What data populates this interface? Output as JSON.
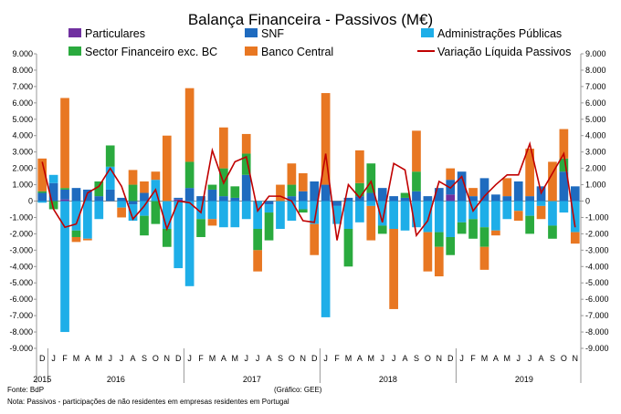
{
  "chart_data": {
    "type": "bar",
    "title": "Balança Financeira - Passivos (M€)",
    "ylim": [
      -9000,
      9000
    ],
    "y_ticks": [
      "9.000",
      "8.000",
      "7.000",
      "6.000",
      "5.000",
      "4.000",
      "3.000",
      "2.000",
      "1.000",
      "0",
      "-1.000",
      "-2.000",
      "-3.000",
      "-4.000",
      "-5.000",
      "-6.000",
      "-7.000",
      "-8.000",
      "-9.000"
    ],
    "month_letters": [
      "D",
      "J",
      "F",
      "M",
      "A",
      "M",
      "J",
      "J",
      "A",
      "S",
      "O",
      "N",
      "D",
      "J",
      "F",
      "M",
      "A",
      "M",
      "J",
      "J",
      "A",
      "S",
      "O",
      "N",
      "D",
      "J",
      "F",
      "M",
      "A",
      "M",
      "J",
      "J",
      "A",
      "S",
      "O",
      "N",
      "D",
      "J",
      "F",
      "M",
      "A",
      "M",
      "J",
      "J",
      "A",
      "S",
      "O",
      "N"
    ],
    "years": [
      {
        "label": "2015",
        "month_index": 0
      },
      {
        "label": "2016",
        "month_index": 6.5
      },
      {
        "label": "2017",
        "month_index": 18.5
      },
      {
        "label": "2018",
        "month_index": 30.5
      },
      {
        "label": "2019",
        "month_index": 42.5
      }
    ],
    "legend": {
      "particulares": "Particulares",
      "snf": "SNF",
      "adm_publicas": "Administrações Públicas",
      "sector_fin": "Sector Financeiro exc. BC",
      "banco_central": "Banco Central",
      "variacao": "Variação Líquida Passivos"
    },
    "series": [
      {
        "key": "particulares",
        "name": "Particulares",
        "color": "#7030a0",
        "values": [
          0,
          0,
          100,
          0,
          0,
          0,
          0,
          0,
          0,
          0,
          0,
          0,
          100,
          0,
          0,
          0,
          0,
          0,
          0,
          0,
          0,
          0,
          0,
          0,
          0,
          0,
          0,
          0,
          0,
          0,
          0,
          0,
          0,
          0,
          0,
          0,
          400,
          0,
          0,
          0,
          0,
          0,
          0,
          0,
          0,
          0,
          0,
          0
        ]
      },
      {
        "key": "snf",
        "name": "SNF",
        "color": "#1f6bbf",
        "values": [
          500,
          1100,
          600,
          800,
          700,
          300,
          700,
          200,
          -200,
          500,
          0,
          0,
          100,
          800,
          300,
          700,
          300,
          200,
          1600,
          0,
          -200,
          0,
          300,
          600,
          1200,
          1000,
          -300,
          200,
          300,
          500,
          800,
          300,
          200,
          600,
          300,
          800,
          900,
          1800,
          300,
          1400,
          400,
          300,
          1200,
          300,
          900,
          0,
          1800,
          900
        ]
      },
      {
        "key": "adm_publicas",
        "name": "Administrações Públicas",
        "color": "#1eaee8",
        "values": [
          -100,
          500,
          -8000,
          -1800,
          -2300,
          -1100,
          1400,
          -400,
          -1000,
          -900,
          1300,
          -1700,
          -4100,
          -5200,
          -1100,
          -1100,
          -1600,
          -1600,
          -1100,
          -1700,
          -500,
          -1700,
          -1200,
          -500,
          -1400,
          -7100,
          -1100,
          -1700,
          -1300,
          -300,
          -1500,
          -1700,
          -1800,
          -1600,
          -1900,
          -1900,
          -2200,
          -1300,
          -1100,
          -1600,
          -1800,
          -1100,
          -600,
          -900,
          -300,
          -1500,
          -700,
          -1900
        ]
      },
      {
        "key": "sector_fin",
        "name": "Sector Financeiro exc. BC",
        "color": "#2aaa3e",
        "values": [
          100,
          -500,
          100,
          -400,
          0,
          900,
          1300,
          0,
          1000,
          -1200,
          -1400,
          -1100,
          0,
          1600,
          -1100,
          300,
          1700,
          700,
          1300,
          -1300,
          -1700,
          0,
          700,
          -200,
          0,
          0,
          0,
          -2300,
          800,
          1800,
          -500,
          0,
          300,
          1200,
          0,
          -900,
          -1100,
          -700,
          -1200,
          -1200,
          0,
          0,
          0,
          -1100,
          0,
          -800,
          800,
          0
        ]
      },
      {
        "key": "banco_central",
        "name": "Banco Central",
        "color": "#e87722",
        "values": [
          2000,
          0,
          5500,
          -300,
          -100,
          0,
          0,
          -600,
          900,
          700,
          500,
          4000,
          0,
          4500,
          0,
          -400,
          2500,
          0,
          1200,
          -1300,
          0,
          1000,
          1300,
          1100,
          -1900,
          5600,
          0,
          0,
          2000,
          -2100,
          0,
          -4900,
          0,
          2500,
          -2400,
          -1800,
          700,
          0,
          500,
          -1400,
          -300,
          1100,
          -600,
          2900,
          -800,
          2400,
          1800,
          -700
        ]
      }
    ],
    "net_line": {
      "name": "Variação Líquida Passivos",
      "color": "#c00000",
      "values": [
        2400,
        -500,
        -1600,
        -1400,
        500,
        900,
        2000,
        900,
        -1100,
        -300,
        700,
        -1700,
        0,
        -100,
        -700,
        3100,
        1100,
        2400,
        2700,
        -600,
        300,
        300,
        0,
        -1200,
        -1300,
        2900,
        -2400,
        1000,
        200,
        1200,
        -1300,
        2300,
        1900,
        -2100,
        -1200,
        1200,
        800,
        1500,
        -600,
        300,
        1000,
        1600,
        1600,
        3500,
        500,
        1700,
        2900,
        -1600
      ]
    },
    "source": "Fonte: BdP",
    "credit": "(Gráfico: GEE)",
    "note": "Nota: Passivos - participações de não residentes em empresas residentes em Portugal"
  }
}
